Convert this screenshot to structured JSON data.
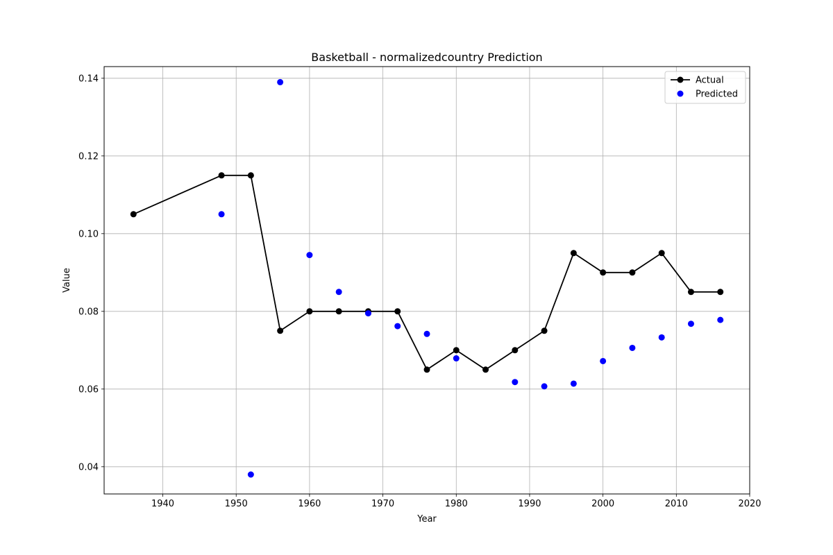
{
  "chart_data": {
    "type": "line",
    "title": "Basketball - normalizedcountry Prediction",
    "xlabel": "Year",
    "ylabel": "Value",
    "xlim": [
      1932,
      2020
    ],
    "ylim": [
      0.033,
      0.143
    ],
    "xticks": [
      1940,
      1950,
      1960,
      1970,
      1980,
      1990,
      2000,
      2010,
      2020
    ],
    "yticks": [
      0.04,
      0.06,
      0.08,
      0.1,
      0.12,
      0.14
    ],
    "ytick_labels": [
      "0.04",
      "0.06",
      "0.08",
      "0.10",
      "0.12",
      "0.14"
    ],
    "grid": true,
    "legend_position": "top-right",
    "series": [
      {
        "name": "Actual",
        "kind": "line-marker",
        "color": "#000000",
        "x": [
          1936,
          1948,
          1952,
          1956,
          1960,
          1964,
          1968,
          1972,
          1976,
          1980,
          1984,
          1988,
          1992,
          1996,
          2000,
          2004,
          2008,
          2012,
          2016
        ],
        "y": [
          0.105,
          0.115,
          0.115,
          0.075,
          0.08,
          0.08,
          0.08,
          0.08,
          0.065,
          0.07,
          0.065,
          0.07,
          0.075,
          0.095,
          0.09,
          0.09,
          0.095,
          0.085,
          0.085
        ]
      },
      {
        "name": "Predicted",
        "kind": "scatter",
        "color": "#0000ff",
        "x": [
          1948,
          1952,
          1956,
          1960,
          1964,
          1968,
          1972,
          1976,
          1980,
          1988,
          1992,
          1996,
          2000,
          2004,
          2008,
          2012,
          2016
        ],
        "y": [
          0.105,
          0.038,
          0.139,
          0.0945,
          0.085,
          0.0795,
          0.0762,
          0.0742,
          0.0679,
          0.0618,
          0.0607,
          0.0614,
          0.0672,
          0.0706,
          0.0733,
          0.0768,
          0.0778
        ]
      }
    ]
  }
}
